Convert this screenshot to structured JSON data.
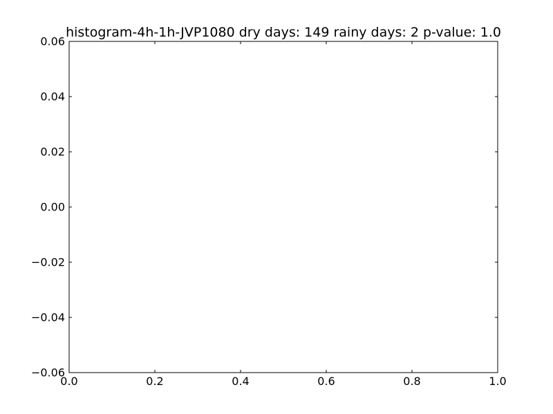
{
  "chart_data": {
    "type": "bar",
    "title": "histogram-4h-1h-JVP1080 dry days: 149 rainy days: 2 p-value: 1.0",
    "xlabel": "",
    "ylabel": "",
    "xlim": [
      0.0,
      1.0
    ],
    "ylim": [
      -0.06,
      0.06
    ],
    "x_ticks": [
      "0.0",
      "0.2",
      "0.4",
      "0.6",
      "0.8",
      "1.0"
    ],
    "x_tick_values": [
      0.0,
      0.2,
      0.4,
      0.6,
      0.8,
      1.0
    ],
    "y_ticks": [
      "0.06",
      "0.04",
      "0.02",
      "0.00",
      "−0.02",
      "−0.04",
      "−0.06"
    ],
    "y_tick_values": [
      0.06,
      0.04,
      0.02,
      0.0,
      -0.02,
      -0.04,
      -0.06
    ],
    "categories": [],
    "values": [],
    "grid": false,
    "legend": "none"
  }
}
